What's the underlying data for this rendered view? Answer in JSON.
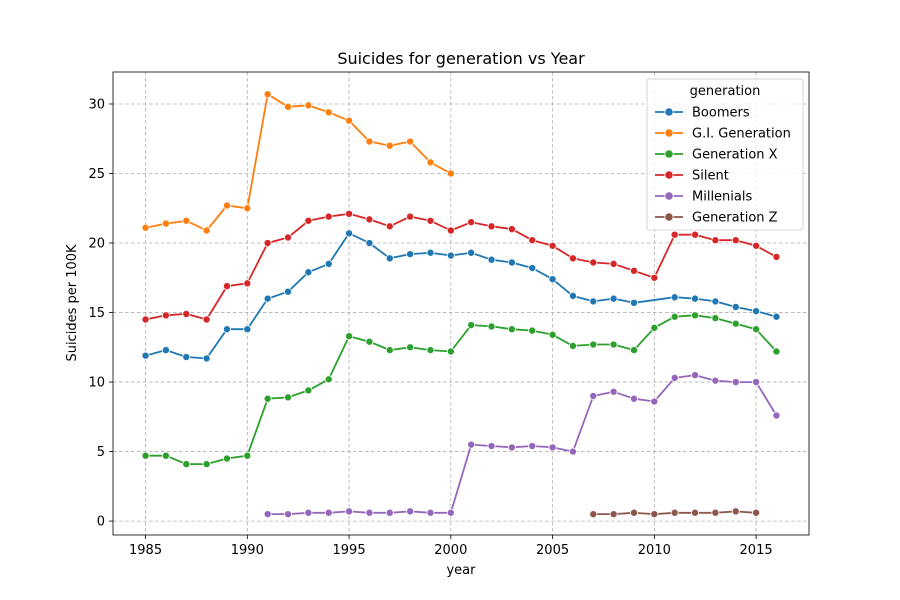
{
  "chart_data": {
    "type": "line",
    "title": "Suicides for generation vs Year",
    "xlabel": "year",
    "ylabel": "Suicides per 100K",
    "xlim": [
      1983.4,
      2017.6
    ],
    "ylim": [
      -1,
      32.3
    ],
    "xticks": [
      1985,
      1990,
      1995,
      2000,
      2005,
      2010,
      2015
    ],
    "yticks": [
      0,
      5,
      10,
      15,
      20,
      25,
      30
    ],
    "grid": true,
    "legend_title": "generation",
    "legend_position": "top-right",
    "series": [
      {
        "name": "Boomers",
        "color": "#1f77b4",
        "points": [
          [
            1985,
            11.9
          ],
          [
            1986,
            12.3
          ],
          [
            1987,
            11.8
          ],
          [
            1988,
            11.7
          ],
          [
            1989,
            13.8
          ],
          [
            1990,
            13.8
          ],
          [
            1991,
            16.0
          ],
          [
            1992,
            16.5
          ],
          [
            1993,
            17.9
          ],
          [
            1994,
            18.5
          ],
          [
            1995,
            20.7
          ],
          [
            1996,
            20.0
          ],
          [
            1997,
            18.9
          ],
          [
            1998,
            19.2
          ],
          [
            1999,
            19.3
          ],
          [
            2000,
            19.1
          ],
          [
            2001,
            19.3
          ],
          [
            2002,
            18.8
          ],
          [
            2003,
            18.6
          ],
          [
            2004,
            18.2
          ],
          [
            2005,
            17.4
          ],
          [
            2006,
            16.2
          ],
          [
            2007,
            15.8
          ],
          [
            2008,
            16.0
          ],
          [
            2009,
            15.7
          ],
          [
            2011,
            16.1
          ],
          [
            2012,
            16.0
          ],
          [
            2013,
            15.8
          ],
          [
            2014,
            15.4
          ],
          [
            2015,
            15.1
          ],
          [
            2016,
            14.7
          ]
        ]
      },
      {
        "name": "G.I. Generation",
        "color": "#ff7f0e",
        "points": [
          [
            1985,
            21.1
          ],
          [
            1986,
            21.4
          ],
          [
            1987,
            21.6
          ],
          [
            1988,
            20.9
          ],
          [
            1989,
            22.7
          ],
          [
            1990,
            22.5
          ],
          [
            1991,
            30.7
          ],
          [
            1992,
            29.8
          ],
          [
            1993,
            29.9
          ],
          [
            1994,
            29.4
          ],
          [
            1995,
            28.8
          ],
          [
            1996,
            27.3
          ],
          [
            1997,
            27.0
          ],
          [
            1998,
            27.3
          ],
          [
            1999,
            25.8
          ],
          [
            2000,
            25.0
          ]
        ]
      },
      {
        "name": "Generation X",
        "color": "#2ca02c",
        "points": [
          [
            1985,
            4.7
          ],
          [
            1986,
            4.7
          ],
          [
            1987,
            4.1
          ],
          [
            1988,
            4.1
          ],
          [
            1989,
            4.5
          ],
          [
            1990,
            4.7
          ],
          [
            1991,
            8.8
          ],
          [
            1992,
            8.9
          ],
          [
            1993,
            9.4
          ],
          [
            1994,
            10.2
          ],
          [
            1995,
            13.3
          ],
          [
            1996,
            12.9
          ],
          [
            1997,
            12.3
          ],
          [
            1998,
            12.5
          ],
          [
            1999,
            12.3
          ],
          [
            2000,
            12.2
          ],
          [
            2001,
            14.1
          ],
          [
            2002,
            14.0
          ],
          [
            2003,
            13.8
          ],
          [
            2004,
            13.7
          ],
          [
            2005,
            13.4
          ],
          [
            2006,
            12.6
          ],
          [
            2007,
            12.7
          ],
          [
            2008,
            12.7
          ],
          [
            2009,
            12.3
          ],
          [
            2010,
            13.9
          ],
          [
            2011,
            14.7
          ],
          [
            2012,
            14.8
          ],
          [
            2013,
            14.6
          ],
          [
            2014,
            14.2
          ],
          [
            2015,
            13.8
          ],
          [
            2016,
            12.2
          ]
        ]
      },
      {
        "name": "Silent",
        "color": "#d62728",
        "points": [
          [
            1985,
            14.5
          ],
          [
            1986,
            14.8
          ],
          [
            1987,
            14.9
          ],
          [
            1988,
            14.5
          ],
          [
            1989,
            16.9
          ],
          [
            1990,
            17.1
          ],
          [
            1991,
            20.0
          ],
          [
            1992,
            20.4
          ],
          [
            1993,
            21.6
          ],
          [
            1994,
            21.9
          ],
          [
            1995,
            22.1
          ],
          [
            1996,
            21.7
          ],
          [
            1997,
            21.2
          ],
          [
            1998,
            21.9
          ],
          [
            1999,
            21.6
          ],
          [
            2000,
            20.9
          ],
          [
            2001,
            21.5
          ],
          [
            2002,
            21.2
          ],
          [
            2003,
            21.0
          ],
          [
            2004,
            20.2
          ],
          [
            2005,
            19.8
          ],
          [
            2006,
            18.9
          ],
          [
            2007,
            18.6
          ],
          [
            2008,
            18.5
          ],
          [
            2009,
            18.0
          ],
          [
            2010,
            17.5
          ],
          [
            2011,
            20.6
          ],
          [
            2012,
            20.6
          ],
          [
            2013,
            20.2
          ],
          [
            2014,
            20.2
          ],
          [
            2015,
            19.8
          ],
          [
            2016,
            19.0
          ]
        ]
      },
      {
        "name": "Millenials",
        "color": "#9467bd",
        "points": [
          [
            1991,
            0.5
          ],
          [
            1992,
            0.5
          ],
          [
            1993,
            0.6
          ],
          [
            1994,
            0.6
          ],
          [
            1995,
            0.7
          ],
          [
            1996,
            0.6
          ],
          [
            1997,
            0.6
          ],
          [
            1998,
            0.7
          ],
          [
            1999,
            0.6
          ],
          [
            2000,
            0.6
          ],
          [
            2001,
            5.5
          ],
          [
            2002,
            5.4
          ],
          [
            2003,
            5.3
          ],
          [
            2004,
            5.4
          ],
          [
            2005,
            5.3
          ],
          [
            2006,
            5.0
          ],
          [
            2007,
            9.0
          ],
          [
            2008,
            9.3
          ],
          [
            2009,
            8.8
          ],
          [
            2010,
            8.6
          ],
          [
            2011,
            10.3
          ],
          [
            2012,
            10.5
          ],
          [
            2013,
            10.1
          ],
          [
            2014,
            10.0
          ],
          [
            2015,
            10.0
          ],
          [
            2016,
            7.6
          ]
        ]
      },
      {
        "name": "Generation Z",
        "color": "#8c564b",
        "points": [
          [
            2007,
            0.5
          ],
          [
            2008,
            0.5
          ],
          [
            2009,
            0.6
          ],
          [
            2010,
            0.5
          ],
          [
            2011,
            0.6
          ],
          [
            2012,
            0.6
          ],
          [
            2013,
            0.6
          ],
          [
            2014,
            0.7
          ],
          [
            2015,
            0.6
          ]
        ]
      }
    ]
  }
}
